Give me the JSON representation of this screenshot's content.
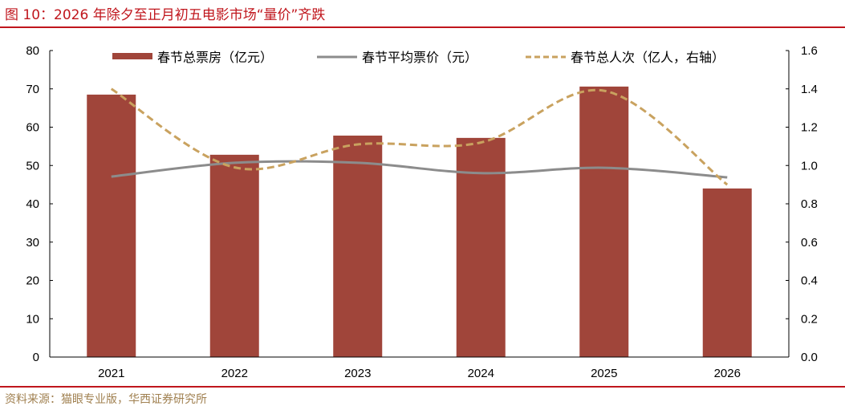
{
  "header": {
    "title": "图 10：2026 年除夕至正月初五电影市场“量价”齐跌",
    "accent_color": "#c0161d"
  },
  "footer": {
    "source": "资料来源：猫眼专业版，华西证券研究所"
  },
  "chart_data": {
    "type": "bar",
    "title": "2026 年除夕至正月初五电影市场“量价”齐跌",
    "categories": [
      "2021",
      "2022",
      "2023",
      "2024",
      "2025",
      "2026"
    ],
    "series": [
      {
        "name": "春节总票房（亿元）",
        "type": "bar",
        "axis": "left",
        "color": "#a0453a",
        "values": [
          68.5,
          52.8,
          57.8,
          57.2,
          70.6,
          44.0
        ]
      },
      {
        "name": "春节平均票价（元）",
        "type": "line",
        "axis": "left",
        "color": "#8c8c8c",
        "values": [
          47.1,
          50.7,
          50.7,
          48.0,
          49.4,
          46.9
        ]
      },
      {
        "name": "春节总人次（亿人，右轴）",
        "type": "line",
        "style": "dashed",
        "axis": "right",
        "color": "#c9a25f",
        "values": [
          1.4,
          0.99,
          1.11,
          1.12,
          1.39,
          0.9
        ]
      }
    ],
    "left_axis": {
      "ylim": [
        0,
        80
      ],
      "ticks": [
        "0",
        "10",
        "20",
        "30",
        "40",
        "50",
        "60",
        "70",
        "80"
      ]
    },
    "right_axis": {
      "ylim": [
        0,
        1.6
      ],
      "ticks": [
        "0.0",
        "0.2",
        "0.4",
        "0.6",
        "0.8",
        "1.0",
        "1.2",
        "1.4",
        "1.6"
      ]
    },
    "legend": {
      "position": "top",
      "items": [
        {
          "label": "春节总票房（亿元）",
          "marker": "bar"
        },
        {
          "label": "春节平均票价（元）",
          "marker": "solid-line"
        },
        {
          "label": "春节总人次（亿人，右轴）",
          "marker": "dashed-line"
        }
      ]
    },
    "grid": false
  }
}
